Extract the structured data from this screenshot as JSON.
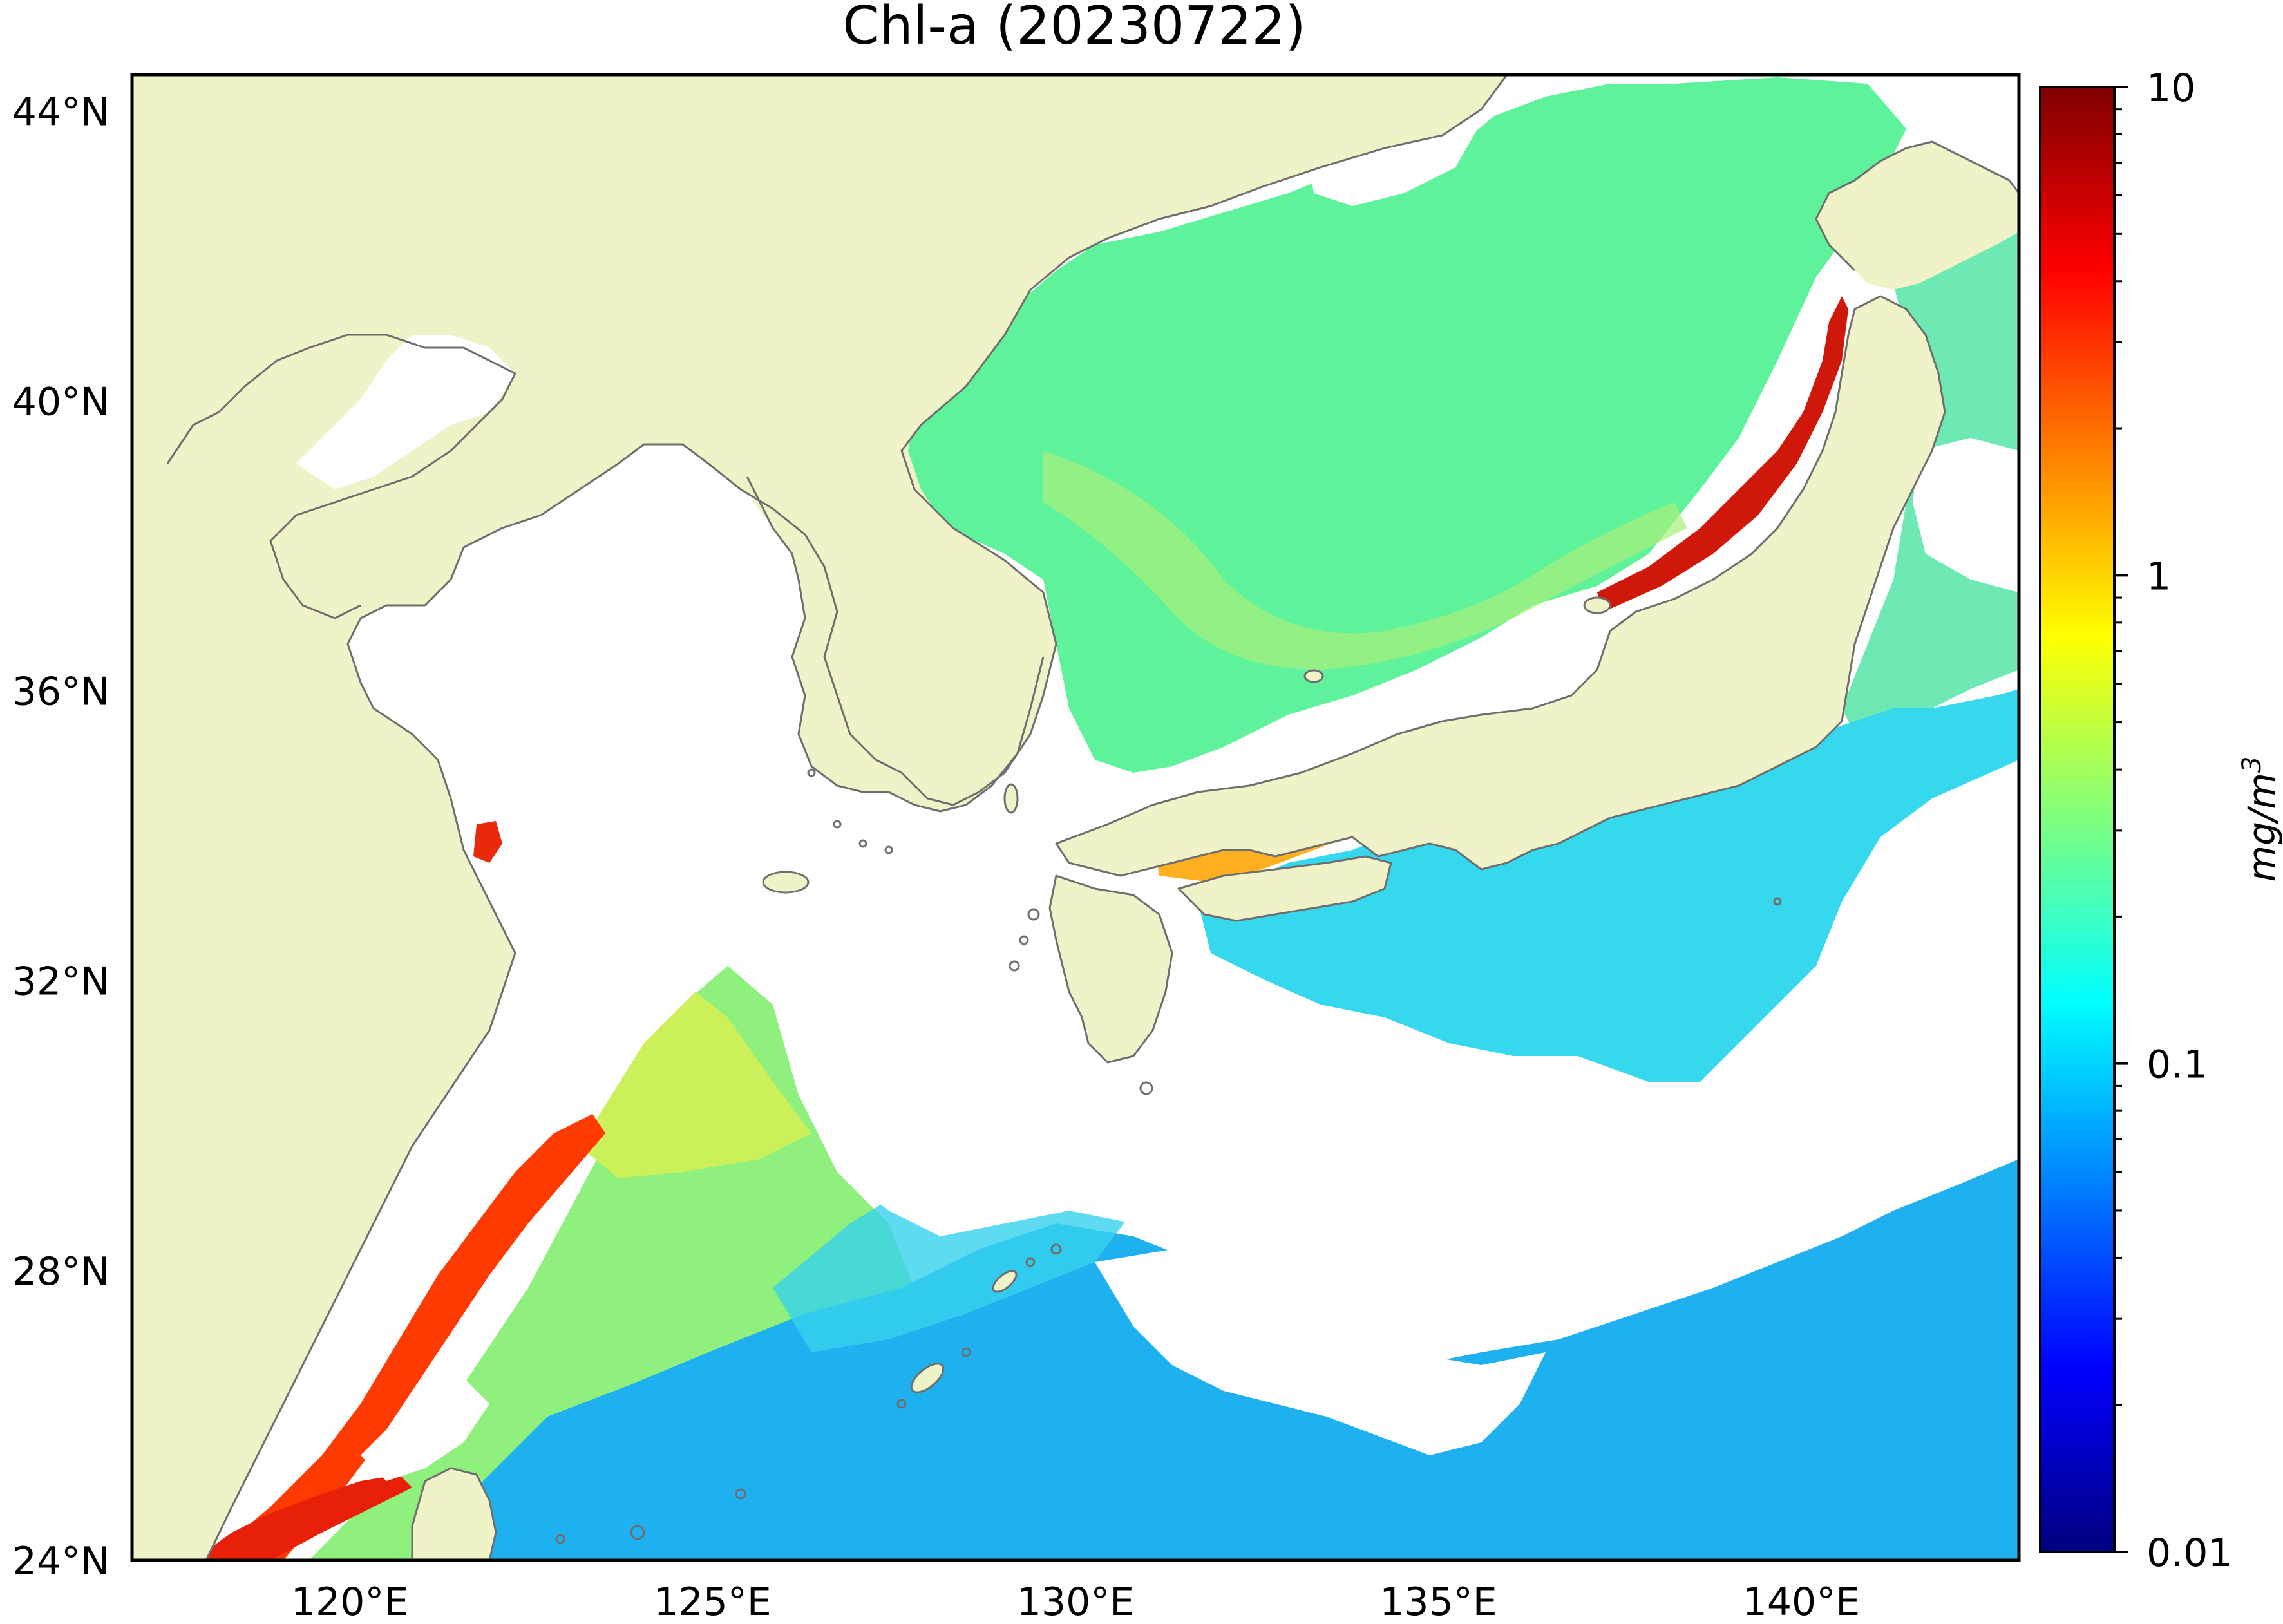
{
  "title": "Chl-a (20230722)",
  "map": {
    "lon_range": [
      117,
      143
    ],
    "lat_range": [
      24,
      44.5
    ],
    "lat_ticks": [
      {
        "value": 44,
        "label": "44°N"
      },
      {
        "value": 40,
        "label": "40°N"
      },
      {
        "value": 36,
        "label": "36°N"
      },
      {
        "value": 32,
        "label": "32°N"
      },
      {
        "value": 28,
        "label": "28°N"
      },
      {
        "value": 24,
        "label": "24°N"
      }
    ],
    "lon_ticks": [
      {
        "value": 120,
        "label": "120°E"
      },
      {
        "value": 125,
        "label": "125°E"
      },
      {
        "value": 130,
        "label": "130°E"
      },
      {
        "value": 135,
        "label": "135°E"
      },
      {
        "value": 140,
        "label": "140°E"
      }
    ],
    "colors": {
      "land": "#f0f3c8",
      "no_data": "#ffffff",
      "coastline": "#6e6e6e"
    }
  },
  "colorbar": {
    "scale": "log",
    "range": [
      0.01,
      10
    ],
    "ticks": [
      {
        "value": 10,
        "label": "10"
      },
      {
        "value": 1,
        "label": "1"
      },
      {
        "value": 0.1,
        "label": "0.1"
      },
      {
        "value": 0.01,
        "label": "0.01"
      }
    ],
    "unit_base": "mg/m",
    "unit_exp": "3",
    "colormap": "jet",
    "colormap_stops": [
      "#00007f",
      "#0000ff",
      "#007fff",
      "#00ffff",
      "#7fff7f",
      "#ffff00",
      "#ff7f00",
      "#ff0000",
      "#7f0000"
    ]
  }
}
